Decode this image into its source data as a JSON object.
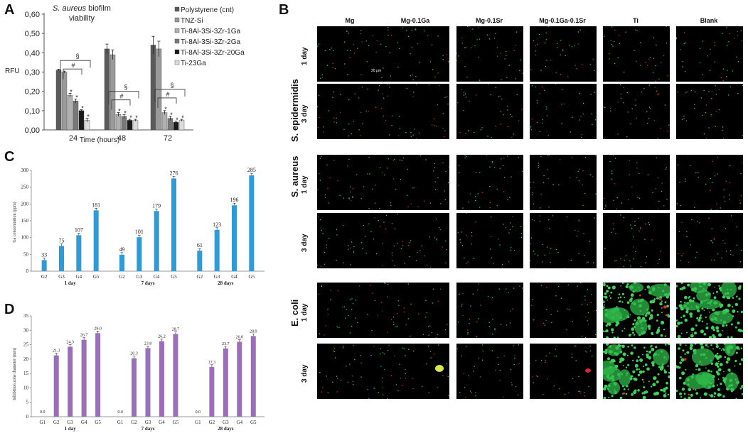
{
  "panels": {
    "A": "A",
    "B": "B",
    "C": "C",
    "D": "D"
  },
  "chart_data": [
    {
      "type": "bar",
      "panel": "A",
      "title_italic": "S. aureus",
      "title_rest": " biofilm",
      "title_line2": "viability",
      "xlabel": "Time (hours)",
      "ylabel": "RFU",
      "ylim": [
        0,
        0.6
      ],
      "yticks": [
        "0,00",
        "0,10",
        "0,20",
        "0,30",
        "0,40",
        "0,50",
        "0,60"
      ],
      "categories": [
        "24",
        "48",
        "72"
      ],
      "series": [
        {
          "name": "Polystyrene (cnt)",
          "color": "#5a5a5a",
          "values": [
            0.31,
            0.42,
            0.44
          ],
          "err": [
            0.005,
            0.025,
            0.045
          ],
          "marks": [
            "",
            "",
            ""
          ]
        },
        {
          "name": "TNZ-Si",
          "color": "#9a9a9a",
          "values": [
            0.3,
            0.39,
            0.42
          ],
          "err": [
            0.005,
            0.025,
            0.04
          ],
          "marks": [
            "",
            "",
            ""
          ]
        },
        {
          "name": "Ti-8Al-3Si-3Zr-1Ga",
          "color": "#b0b0b0",
          "values": [
            0.18,
            0.08,
            0.09
          ],
          "err": [
            0.01,
            0.01,
            0.01
          ],
          "marks": [
            "*",
            "*",
            "*"
          ]
        },
        {
          "name": "Ti-8Al-3Si-3Zr-2Ga",
          "color": "#787878",
          "values": [
            0.15,
            0.07,
            0.06
          ],
          "err": [
            0.01,
            0.01,
            0.01
          ],
          "marks": [
            "*",
            "*",
            "*"
          ]
        },
        {
          "name": "Ti-8Al-3Si-3Zr-20Ga",
          "color": "#1a1a1a",
          "values": [
            0.1,
            0.05,
            0.04
          ],
          "err": [
            0.005,
            0.005,
            0.005
          ],
          "marks": [
            "*",
            "*",
            "*"
          ]
        },
        {
          "name": "Ti-23Ga",
          "color": "#dcdcdc",
          "values": [
            0.05,
            0.05,
            0.05
          ],
          "err": [
            0.01,
            0.005,
            0.005
          ],
          "marks": [
            "*",
            "*",
            "*"
          ]
        }
      ],
      "brackets": [
        "§",
        "#"
      ]
    },
    {
      "type": "bar",
      "panel": "C",
      "ylabel": "Ga concentration (ppm)",
      "ylim": [
        0,
        300
      ],
      "yticks": [
        "0",
        "50",
        "100",
        "150",
        "200",
        "250",
        "300"
      ],
      "groups": [
        {
          "label": "1 day",
          "cats": [
            "G2",
            "G3",
            "G4",
            "G5"
          ],
          "values": [
            33,
            75,
            107,
            181
          ],
          "labels": [
            "33",
            "75",
            "107",
            "181"
          ]
        },
        {
          "label": "7 days",
          "cats": [
            "G2",
            "G3",
            "G4",
            "G5"
          ],
          "values": [
            49,
            101,
            179,
            276
          ],
          "labels": [
            "49",
            "101",
            "179",
            "276"
          ]
        },
        {
          "label": "28 days",
          "cats": [
            "G2",
            "G3",
            "G4",
            "G5"
          ],
          "values": [
            61,
            123,
            196,
            285
          ],
          "labels": [
            "61",
            "123",
            "196",
            "285"
          ]
        }
      ],
      "color": "#2e9bd6"
    },
    {
      "type": "bar",
      "panel": "D",
      "ylabel": "Inhibition zone diameter (mm)",
      "ylim": [
        0,
        35
      ],
      "yticks": [
        "0",
        "5",
        "10",
        "15",
        "20",
        "25",
        "30",
        "35"
      ],
      "groups": [
        {
          "label": "1 day",
          "cats": [
            "G1",
            "G2",
            "G3",
            "G4",
            "G5"
          ],
          "values": [
            0.0,
            21.3,
            24.3,
            26.7,
            29.0
          ],
          "labels": [
            "0.0",
            "21.3",
            "24.3",
            "26.7",
            "29.0"
          ]
        },
        {
          "label": "7 days",
          "cats": [
            "G1",
            "G2",
            "G3",
            "G4",
            "G5"
          ],
          "values": [
            0.0,
            20.3,
            23.8,
            26.2,
            28.7
          ],
          "labels": [
            "0.0",
            "20.3",
            "23.8",
            "26.2",
            "28.7"
          ]
        },
        {
          "label": "28 days",
          "cats": [
            "G1",
            "G2",
            "G3",
            "G4",
            "G5"
          ],
          "values": [
            0.0,
            17.3,
            23.7,
            26.0,
            28.0
          ],
          "labels": [
            "0.0",
            "17.3",
            "23.7",
            "26.0",
            "28.0"
          ]
        }
      ],
      "color": "#9b6fb8"
    }
  ],
  "panelB": {
    "columns": [
      "Mg",
      "Mg-0.1Ga",
      "Mg-0.1Sr",
      "Mg-0.1Ga-0.1Sr",
      "Ti",
      "Blank"
    ],
    "species": [
      "S. epidermidis",
      "S. aureus",
      "E. coli"
    ],
    "rows": [
      "1 day",
      "3 day"
    ],
    "scale_bar": "20 μm"
  }
}
